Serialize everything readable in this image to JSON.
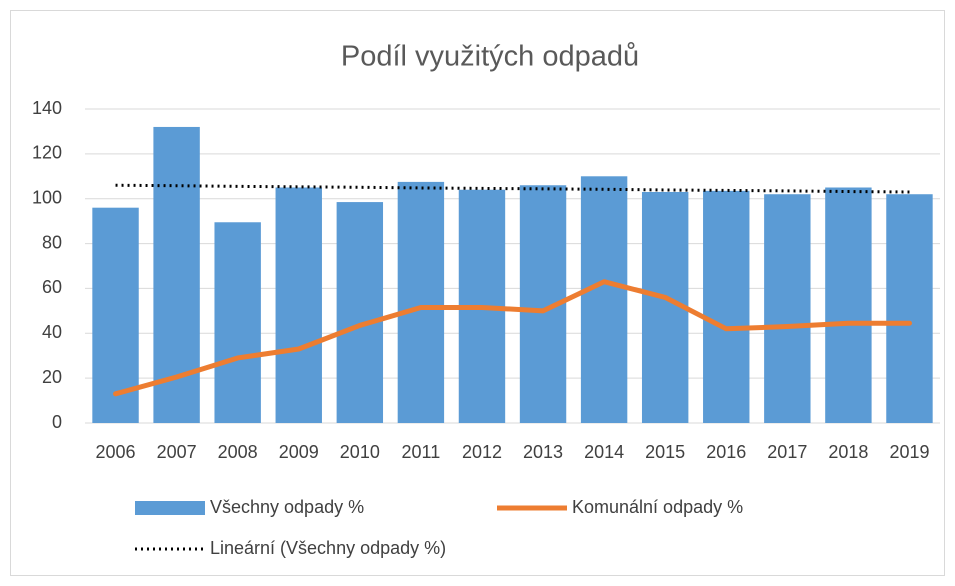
{
  "chart_data": {
    "type": "bar",
    "title": "Podíl využitých odpadů",
    "categories": [
      "2006",
      "2007",
      "2008",
      "2009",
      "2010",
      "2011",
      "2012",
      "2013",
      "2014",
      "2015",
      "2016",
      "2017",
      "2018",
      "2019"
    ],
    "series": [
      {
        "name": "Všechny odpady %",
        "type": "bar",
        "color": "#5b9bd5",
        "values": [
          96,
          132,
          89.5,
          105,
          98.5,
          107.5,
          104,
          106,
          110,
          103,
          103.5,
          102,
          105,
          102
        ]
      },
      {
        "name": "Komunální odpady %",
        "type": "line",
        "color": "#ed7d31",
        "values": [
          13,
          20.5,
          29,
          33,
          43.5,
          51.5,
          51.5,
          50,
          63,
          56,
          42,
          43,
          44.5,
          44.5
        ]
      },
      {
        "name": "Lineární (Všechny odpady %)",
        "type": "line",
        "dash": "dotted",
        "color": "#000000",
        "values": [
          106,
          105.8,
          105.5,
          105.3,
          105.1,
          104.8,
          104.6,
          104.4,
          104.2,
          103.9,
          103.7,
          103.5,
          103.2,
          103
        ]
      }
    ],
    "ylim": [
      0,
      140
    ],
    "yticks": [
      0,
      20,
      40,
      60,
      80,
      100,
      120,
      140
    ],
    "grid": true
  }
}
